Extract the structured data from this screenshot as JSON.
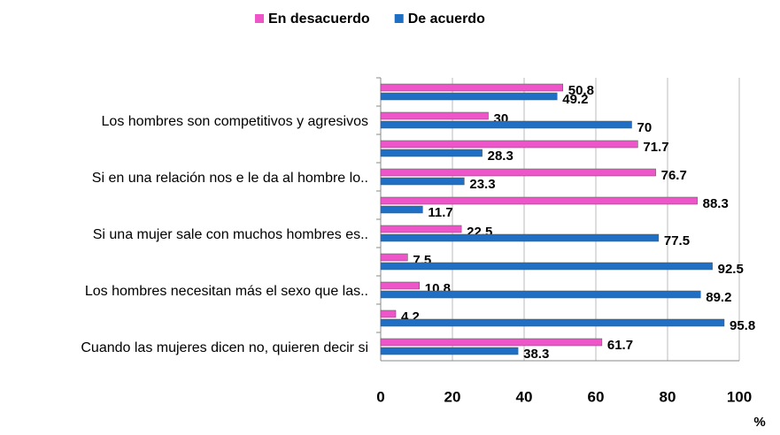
{
  "chart_data": {
    "type": "bar",
    "orientation": "horizontal",
    "categories": [
      null,
      "Los hombres son competitivos y agresivos",
      null,
      "Si en una relación nos e le da al hombre lo..",
      null,
      "Si una mujer sale con muchos hombres es..",
      null,
      "Los hombres necesitan más el sexo que las..",
      null,
      "Cuando las mujeres dicen no, quieren decir si"
    ],
    "series": [
      {
        "name": "En desacuerdo",
        "color": "#ee55c8",
        "values": [
          50.8,
          30,
          71.7,
          76.7,
          88.3,
          22.5,
          7.5,
          10.8,
          4.2,
          61.7
        ]
      },
      {
        "name": "De acuerdo",
        "color": "#1f6fc4",
        "values": [
          49.2,
          70,
          28.3,
          23.3,
          11.7,
          77.5,
          92.5,
          89.2,
          95.8,
          38.3
        ]
      }
    ],
    "xlim": [
      0,
      100
    ],
    "xticks": [
      0,
      20,
      40,
      60,
      80,
      100
    ],
    "xlabel": "%",
    "grid": true,
    "legend": "top"
  }
}
